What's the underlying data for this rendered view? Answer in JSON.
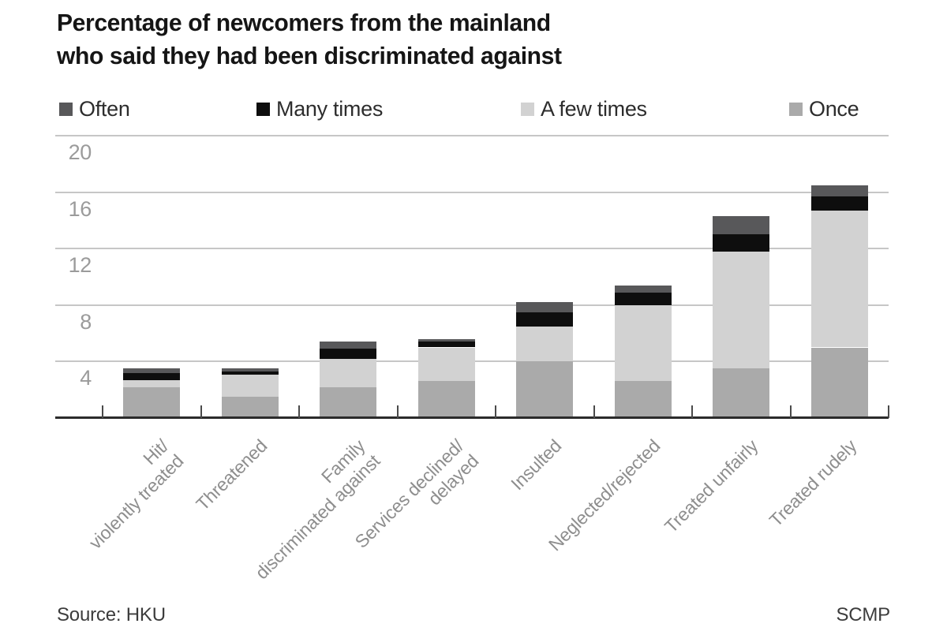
{
  "title": {
    "line1": "Percentage of newcomers from the mainland",
    "line2": "who said they had been discriminated against"
  },
  "footer": {
    "source": "Source: HKU",
    "brand": "SCMP"
  },
  "chart_data": {
    "type": "bar",
    "stacked": true,
    "title": "Percentage of newcomers from the mainland who said they had been discriminated against",
    "xlabel": "",
    "ylabel": "",
    "ylim": [
      0,
      21.5
    ],
    "yticks": [
      4,
      8,
      12,
      16,
      20
    ],
    "grid": true,
    "legend_position": "top",
    "categories": [
      "Hit/\nviolently treated",
      "Threatened",
      "Family\ndiscriminated against",
      "Services declined/\ndelayed",
      "Insulted",
      "Neglected/rejected",
      "Treated unfairly",
      "Treated rudely"
    ],
    "series": [
      {
        "name": "Often",
        "color": "#58585a",
        "values": [
          0.3,
          0.2,
          0.5,
          0.2,
          0.7,
          0.5,
          1.3,
          0.8
        ]
      },
      {
        "name": "Many times",
        "color": "#0e0e0e",
        "values": [
          0.5,
          0.2,
          0.7,
          0.4,
          1.0,
          0.9,
          1.2,
          1.0
        ]
      },
      {
        "name": "A few times",
        "color": "#d2d2d2",
        "values": [
          0.5,
          1.6,
          2.0,
          2.4,
          2.5,
          5.4,
          8.3,
          9.7
        ]
      },
      {
        "name": "Once",
        "color": "#aaaaaa",
        "values": [
          2.2,
          1.5,
          2.2,
          2.6,
          4.0,
          2.6,
          3.5,
          5.0
        ]
      }
    ],
    "totals": [
      3.5,
      3.5,
      5.4,
      5.6,
      8.2,
      9.4,
      14.3,
      16.5
    ],
    "colors": {
      "grid": "#c6c6c6",
      "axis": "#2b2b2b",
      "tick_text": "#9b9b9b",
      "category_text": "#8e8e8e"
    }
  }
}
